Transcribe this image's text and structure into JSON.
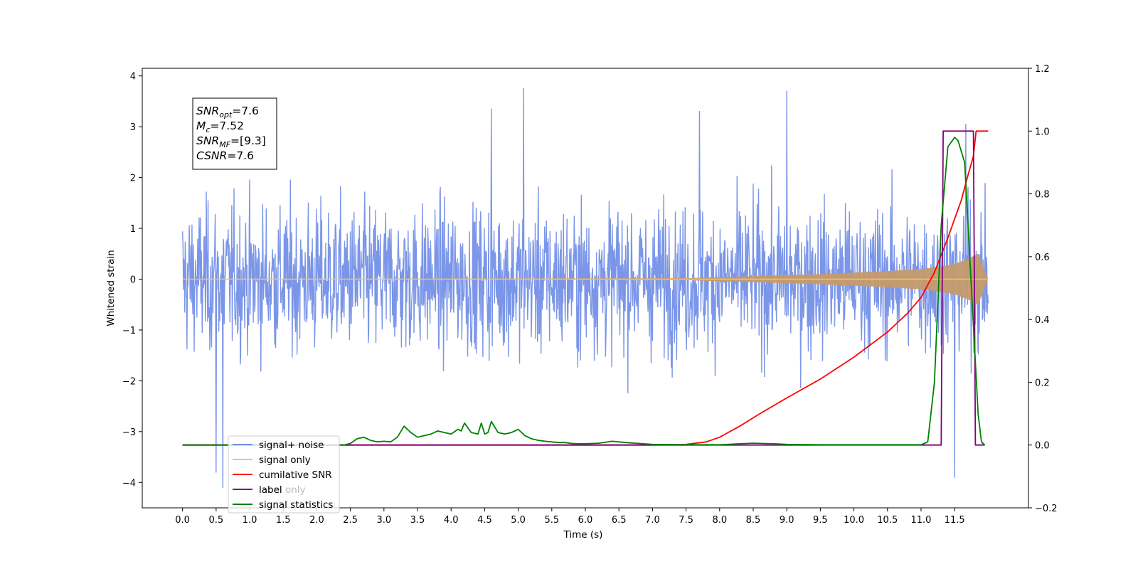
{
  "chart_data": {
    "type": "line",
    "xlabel": "Time (s)",
    "ylabel": "Whitened strain",
    "xlim": [
      -0.6,
      12.6
    ],
    "ylim_left": [
      -4.5,
      4.15
    ],
    "ylim_right": [
      -0.2,
      1.2
    ],
    "x_ticks": [
      "0.0",
      "0.5",
      "1.0",
      "1.5",
      "2.0",
      "2.5",
      "3.0",
      "3.5",
      "4.0",
      "4.5",
      "5.0",
      "5.5",
      "6.0",
      "6.5",
      "7.0",
      "7.5",
      "8.0",
      "8.5",
      "9.0",
      "9.5",
      "10.0",
      "10.5",
      "11.0",
      "11.5"
    ],
    "y_left_ticks": [
      "4",
      "3",
      "2",
      "1",
      "0",
      "−1",
      "−2",
      "−3",
      "−4"
    ],
    "y_right_ticks": [
      "1.2",
      "1.0",
      "0.8",
      "0.6",
      "0.4",
      "0.2",
      "0.0",
      "−0.2"
    ],
    "annotation": {
      "lines": [
        {
          "base": "SNR",
          "sub": "opt",
          "value": "=7.6"
        },
        {
          "base": "M",
          "sub": "c",
          "value": "=7.52"
        },
        {
          "base": "SNR",
          "sub": "MF",
          "value": "=[9.3]"
        },
        {
          "base": "CSNR",
          "sub": "",
          "value": "=7.6"
        }
      ]
    },
    "legend": {
      "placement": "lower-left",
      "entries": [
        {
          "label": "signal+ noise",
          "color": "#6f8ee6"
        },
        {
          "label": "signal only",
          "color": "#ffbf5f"
        },
        {
          "label": "cumilative SNR",
          "color": "#ff0000"
        },
        {
          "label": "label",
          "color": "#800080"
        },
        {
          "label": "signal statistics",
          "color": "#008000"
        }
      ],
      "ghost_label": "label only"
    },
    "series": [
      {
        "name": "signal+ noise",
        "axis": "left",
        "color": "#7b96e8",
        "x_range": [
          0.0,
          12.0
        ],
        "mean": 0.0,
        "std": 1.0,
        "peaks": [
          {
            "x": 0.5,
            "y": -3.8
          },
          {
            "x": 0.6,
            "y": -4.1
          },
          {
            "x": 5.08,
            "y": 3.75
          },
          {
            "x": 9.0,
            "y": 3.7
          },
          {
            "x": 11.5,
            "y": -3.9
          },
          {
            "x": 11.67,
            "y": 3.05
          },
          {
            "x": 4.6,
            "y": 3.35
          },
          {
            "x": 7.7,
            "y": 3.3
          }
        ]
      },
      {
        "name": "signal only",
        "axis": "left",
        "color": "#c49a6c",
        "x": [
          0.0,
          7.5,
          8.0,
          8.5,
          9.0,
          9.5,
          10.0,
          10.5,
          11.0,
          11.3,
          11.5,
          11.7,
          11.85,
          12.0
        ],
        "amplitude": [
          0.0,
          0.02,
          0.04,
          0.06,
          0.08,
          0.1,
          0.13,
          0.16,
          0.2,
          0.25,
          0.3,
          0.4,
          0.5,
          0.0
        ]
      },
      {
        "name": "cumilative SNR",
        "axis": "right",
        "color": "#ff0000",
        "x": [
          0.0,
          6.0,
          7.0,
          7.5,
          7.8,
          8.0,
          8.3,
          8.6,
          9.0,
          9.5,
          10.0,
          10.5,
          10.8,
          11.0,
          11.2,
          11.4,
          11.6,
          11.7,
          11.78,
          11.82,
          12.0
        ],
        "y": [
          0.0,
          0.0,
          0.0,
          0.002,
          0.01,
          0.025,
          0.06,
          0.1,
          0.15,
          0.21,
          0.28,
          0.36,
          0.42,
          0.47,
          0.55,
          0.66,
          0.78,
          0.86,
          0.92,
          1.0,
          1.0
        ]
      },
      {
        "name": "label",
        "axis": "right",
        "color": "#800080",
        "x": [
          0.0,
          11.3,
          11.33,
          11.78,
          11.81,
          11.95
        ],
        "y": [
          0.0,
          0.0,
          1.0,
          1.0,
          0.0,
          0.0
        ]
      },
      {
        "name": "signal statistics",
        "axis": "right",
        "color": "#008000",
        "x": [
          0.0,
          2.4,
          2.5,
          2.6,
          2.7,
          2.8,
          2.9,
          3.0,
          3.1,
          3.2,
          3.3,
          3.4,
          3.5,
          3.6,
          3.7,
          3.8,
          3.9,
          4.0,
          4.1,
          4.15,
          4.2,
          4.3,
          4.4,
          4.45,
          4.5,
          4.55,
          4.6,
          4.7,
          4.8,
          4.9,
          5.0,
          5.1,
          5.2,
          5.3,
          5.4,
          5.5,
          5.6,
          5.7,
          5.8,
          5.9,
          6.0,
          6.2,
          6.4,
          6.5,
          6.6,
          6.8,
          7.0,
          7.5,
          8.0,
          8.3,
          8.5,
          8.8,
          9.0,
          9.5,
          10.0,
          11.0,
          11.1,
          11.2,
          11.3,
          11.4,
          11.5,
          11.55,
          11.65,
          11.75,
          11.85,
          11.9,
          11.95
        ],
        "y": [
          0.0,
          0.0,
          0.005,
          0.02,
          0.025,
          0.015,
          0.01,
          0.012,
          0.01,
          0.025,
          0.06,
          0.04,
          0.025,
          0.03,
          0.035,
          0.045,
          0.04,
          0.035,
          0.05,
          0.045,
          0.07,
          0.04,
          0.035,
          0.07,
          0.035,
          0.04,
          0.075,
          0.04,
          0.035,
          0.04,
          0.05,
          0.03,
          0.02,
          0.015,
          0.012,
          0.01,
          0.008,
          0.008,
          0.005,
          0.004,
          0.004,
          0.006,
          0.012,
          0.01,
          0.008,
          0.005,
          0.002,
          0.001,
          0.001,
          0.004,
          0.006,
          0.004,
          0.002,
          0.001,
          0.001,
          0.001,
          0.01,
          0.2,
          0.7,
          0.95,
          0.98,
          0.97,
          0.9,
          0.5,
          0.1,
          0.01,
          0.0
        ]
      }
    ]
  }
}
